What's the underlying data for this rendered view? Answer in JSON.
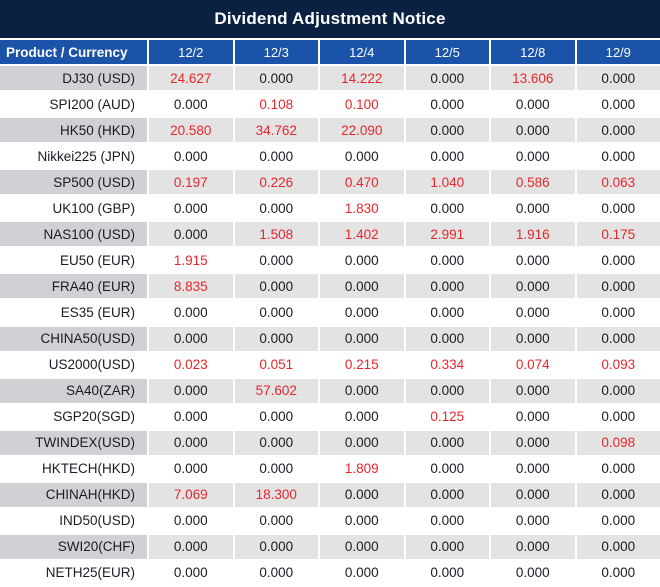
{
  "title": "Dividend Adjustment Notice",
  "colors": {
    "title_bg": "#0a2142",
    "header_bg": "#1a53a7",
    "header_text": "#ffffff",
    "value_red": "#e8262b",
    "value_dark": "#1b1b24",
    "row_product_bg": "#cfd1d5",
    "row_value_bg": "#e3e3e3",
    "row_alt_bg": "#ffffff",
    "divider": "#ffffff"
  },
  "table": {
    "product_header": "Product / Currency",
    "date_headers": [
      "12/2",
      "12/3",
      "12/4",
      "12/5",
      "12/8",
      "12/9"
    ],
    "rows": [
      {
        "product": "DJ30 (USD)",
        "values": [
          "24.627",
          "0.000",
          "14.222",
          "0.000",
          "13.606",
          "0.000"
        ]
      },
      {
        "product": "SPI200 (AUD)",
        "values": [
          "0.000",
          "0.108",
          "0.100",
          "0.000",
          "0.000",
          "0.000"
        ]
      },
      {
        "product": "HK50 (HKD)",
        "values": [
          "20.580",
          "34.762",
          "22.090",
          "0.000",
          "0.000",
          "0.000"
        ]
      },
      {
        "product": "Nikkei225 (JPN)",
        "values": [
          "0.000",
          "0.000",
          "0.000",
          "0.000",
          "0.000",
          "0.000"
        ]
      },
      {
        "product": "SP500 (USD)",
        "values": [
          "0.197",
          "0.226",
          "0.470",
          "1.040",
          "0.586",
          "0.063"
        ]
      },
      {
        "product": "UK100 (GBP)",
        "values": [
          "0.000",
          "0.000",
          "1.830",
          "0.000",
          "0.000",
          "0.000"
        ]
      },
      {
        "product": "NAS100 (USD)",
        "values": [
          "0.000",
          "1.508",
          "1.402",
          "2.991",
          "1.916",
          "0.175"
        ]
      },
      {
        "product": "EU50 (EUR)",
        "values": [
          "1.915",
          "0.000",
          "0.000",
          "0.000",
          "0.000",
          "0.000"
        ]
      },
      {
        "product": "FRA40 (EUR)",
        "values": [
          "8.835",
          "0.000",
          "0.000",
          "0.000",
          "0.000",
          "0.000"
        ]
      },
      {
        "product": "ES35 (EUR)",
        "values": [
          "0.000",
          "0.000",
          "0.000",
          "0.000",
          "0.000",
          "0.000"
        ]
      },
      {
        "product": "CHINA50(USD)",
        "values": [
          "0.000",
          "0.000",
          "0.000",
          "0.000",
          "0.000",
          "0.000"
        ]
      },
      {
        "product": "US2000(USD)",
        "values": [
          "0.023",
          "0.051",
          "0.215",
          "0.334",
          "0.074",
          "0.093"
        ]
      },
      {
        "product": "SA40(ZAR)",
        "values": [
          "0.000",
          "57.602",
          "0.000",
          "0.000",
          "0.000",
          "0.000"
        ]
      },
      {
        "product": "SGP20(SGD)",
        "values": [
          "0.000",
          "0.000",
          "0.000",
          "0.125",
          "0.000",
          "0.000"
        ]
      },
      {
        "product": "TWINDEX(USD)",
        "values": [
          "0.000",
          "0.000",
          "0.000",
          "0.000",
          "0.000",
          "0.098"
        ]
      },
      {
        "product": "HKTECH(HKD)",
        "values": [
          "0.000",
          "0.000",
          "1.809",
          "0.000",
          "0.000",
          "0.000"
        ]
      },
      {
        "product": "CHINAH(HKD)",
        "values": [
          "7.069",
          "18.300",
          "0.000",
          "0.000",
          "0.000",
          "0.000"
        ]
      },
      {
        "product": "IND50(USD)",
        "values": [
          "0.000",
          "0.000",
          "0.000",
          "0.000",
          "0.000",
          "0.000"
        ]
      },
      {
        "product": "SWI20(CHF)",
        "values": [
          "0.000",
          "0.000",
          "0.000",
          "0.000",
          "0.000",
          "0.000"
        ]
      },
      {
        "product": "NETH25(EUR)",
        "values": [
          "0.000",
          "0.000",
          "0.000",
          "0.000",
          "0.000",
          "0.000"
        ]
      }
    ]
  }
}
